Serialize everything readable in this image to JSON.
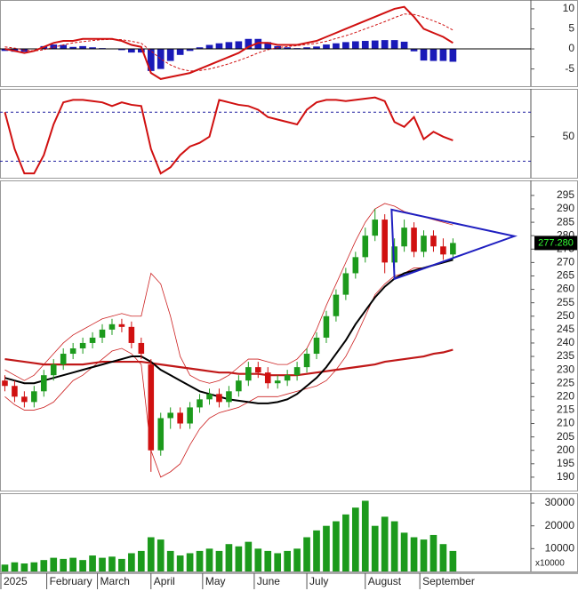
{
  "chart_data": [
    {
      "type": "macd",
      "xlim": [
        -0.5,
        54
      ],
      "ylim": [
        -9.3,
        12.2
      ],
      "yticks": [
        -5,
        0,
        5,
        10
      ],
      "macd": {
        "color": "#d01010",
        "values": [
          0,
          -0.5,
          -1,
          -0.5,
          0.5,
          1.5,
          2,
          2,
          2.5,
          2.5,
          2.5,
          2.5,
          2,
          1,
          0.5,
          -6,
          -7.5,
          -7,
          -6.5,
          -6,
          -5,
          -4,
          -3,
          -2,
          -1,
          0.5,
          1.5,
          1.5,
          1,
          1,
          1,
          1.5,
          2,
          3,
          4,
          5,
          6,
          7,
          8,
          9,
          10,
          10.5,
          8,
          5,
          4,
          3,
          1.5
        ]
      },
      "signal": {
        "color": "#d01010",
        "values": [
          0.5,
          0.2,
          -0.3,
          -0.5,
          -0.2,
          0.4,
          1,
          1.5,
          1.8,
          2.1,
          2.3,
          2.4,
          2.3,
          1.9,
          1.4,
          -0.5,
          -2.5,
          -4,
          -5,
          -5.5,
          -5.4,
          -5,
          -4.4,
          -3.7,
          -2.9,
          -2,
          -1,
          -0.2,
          0.3,
          0.6,
          0.8,
          1.1,
          1.4,
          1.9,
          2.6,
          3.3,
          4.1,
          5,
          5.9,
          6.8,
          7.8,
          8.7,
          8.6,
          7.9,
          7,
          6,
          4.7
        ]
      },
      "histogram": {
        "color": "#1a1ab8",
        "values": [
          -0.5,
          -0.7,
          -0.7,
          0,
          0.7,
          1.1,
          1,
          0.5,
          0.7,
          0.4,
          0.2,
          0.1,
          -0.3,
          -0.9,
          -0.9,
          -5.5,
          -5,
          -3,
          -1.5,
          -0.5,
          0.4,
          1,
          1.4,
          1.7,
          1.9,
          2.5,
          2.5,
          1.7,
          0.7,
          0.4,
          0.2,
          0.4,
          0.6,
          1.1,
          1.4,
          1.7,
          1.9,
          2,
          2.1,
          2.2,
          2.2,
          1.8,
          -0.6,
          -2.9,
          -3,
          -3,
          -3.2
        ]
      }
    },
    {
      "type": "line",
      "xlim": [
        -0.5,
        54
      ],
      "ylim": [
        16.5,
        89
      ],
      "yticks": [
        50
      ],
      "levels": [
        30,
        70
      ],
      "color": "#d01010",
      "values": [
        70,
        40,
        20,
        20,
        35,
        60,
        78,
        80,
        80,
        79,
        78,
        75,
        78,
        76,
        75,
        40,
        20,
        25,
        35,
        42,
        45,
        50,
        80,
        78,
        76,
        75,
        72,
        66,
        64,
        62,
        60,
        72,
        78,
        80,
        80,
        79,
        80,
        81,
        82,
        79,
        62,
        58,
        66,
        48,
        54,
        50,
        47
      ]
    },
    {
      "type": "candlestick",
      "xlim": [
        -0.5,
        54
      ],
      "ylim": [
        185,
        300.6
      ],
      "yticks": [
        190,
        195,
        200,
        205,
        210,
        215,
        220,
        225,
        230,
        235,
        240,
        245,
        250,
        255,
        260,
        265,
        270,
        275,
        280,
        285,
        290,
        295
      ],
      "up_color": "#1c9a1c",
      "down_color": "#d01010",
      "open": [
        226,
        224,
        220,
        218,
        222,
        228,
        232,
        236,
        238,
        240,
        242,
        245,
        247,
        246,
        240,
        232,
        200,
        212,
        214,
        210,
        216,
        219,
        221,
        218,
        222,
        226,
        231,
        229,
        225,
        226,
        228,
        231,
        236,
        242,
        250,
        258,
        266,
        272,
        280,
        286,
        270,
        276,
        283,
        274,
        280,
        276,
        273
      ],
      "high": [
        228,
        226,
        222,
        224,
        230,
        234,
        238,
        240,
        242,
        244,
        247,
        249,
        249,
        248,
        242,
        234,
        214,
        216,
        216,
        218,
        221,
        223,
        223,
        224,
        228,
        233,
        233,
        231,
        228,
        230,
        233,
        238,
        244,
        252,
        260,
        268,
        274,
        283,
        290,
        288,
        279,
        286,
        285,
        282,
        282,
        279,
        279
      ],
      "low": [
        222,
        218,
        216,
        216,
        220,
        226,
        230,
        234,
        236,
        238,
        240,
        243,
        244,
        238,
        234,
        192,
        198,
        208,
        208,
        208,
        214,
        217,
        216,
        216,
        220,
        224,
        227,
        223,
        223,
        224,
        226,
        229,
        234,
        240,
        248,
        256,
        264,
        270,
        278,
        266,
        268,
        274,
        272,
        272,
        274,
        271,
        271
      ],
      "close": [
        224,
        220,
        218,
        222,
        228,
        232,
        236,
        238,
        240,
        242,
        245,
        247,
        246,
        240,
        236,
        200,
        212,
        214,
        210,
        216,
        219,
        221,
        218,
        222,
        226,
        231,
        229,
        225,
        226,
        228,
        231,
        236,
        242,
        250,
        258,
        266,
        272,
        280,
        286,
        270,
        276,
        283,
        274,
        280,
        276,
        273,
        277.28
      ],
      "overlays": [
        {
          "color": "#cc2020",
          "width": 0.8,
          "values": [
            230,
            228,
            226,
            228,
            232,
            236,
            240,
            243,
            245,
            247,
            249,
            250,
            251,
            250,
            250,
            266,
            262,
            250,
            235,
            228,
            226,
            225,
            226,
            228,
            231,
            234,
            234,
            233,
            232,
            232,
            234,
            238,
            245,
            254,
            262,
            270,
            278,
            285,
            290,
            292,
            291,
            289,
            288,
            287,
            286,
            285,
            284
          ]
        },
        {
          "color": "#cc2020",
          "width": 0.8,
          "values": [
            220,
            217,
            215,
            215,
            216,
            218,
            222,
            226,
            228,
            231,
            234,
            237,
            238,
            236,
            232,
            200,
            190,
            192,
            195,
            202,
            208,
            212,
            214,
            215,
            216,
            218,
            220,
            220,
            220,
            221,
            222,
            223,
            224,
            226,
            230,
            235,
            242,
            250,
            258,
            262,
            265,
            266,
            268,
            268,
            269,
            270,
            271
          ]
        },
        {
          "color": "#c01818",
          "width": 2.2,
          "values": [
            234,
            233.5,
            233,
            232.5,
            232,
            232,
            232,
            232,
            232,
            232.5,
            233,
            233,
            233,
            233,
            233,
            232.5,
            232,
            231.5,
            231,
            230.5,
            230,
            229.5,
            229,
            229,
            228.5,
            228.5,
            228.5,
            228,
            228,
            228,
            228,
            228.5,
            229,
            229.5,
            230,
            230.5,
            231,
            231.5,
            232,
            233,
            233.5,
            234,
            234.5,
            235,
            236,
            236.5,
            237.5
          ]
        },
        {
          "color": "#000000",
          "width": 2,
          "values": [
            227,
            226,
            225,
            225,
            226,
            227,
            228,
            229,
            230,
            231,
            232,
            233,
            234,
            235,
            235,
            233,
            230,
            228,
            226,
            224,
            222,
            221,
            220,
            219,
            218.5,
            218,
            217.5,
            217.5,
            218,
            219,
            221,
            224,
            227,
            231,
            236,
            241,
            247,
            252,
            257,
            261,
            264,
            266,
            267,
            268,
            269,
            270,
            271
          ]
        }
      ],
      "triangle": {
        "color": "#1f1fc0",
        "x": [
          39.7,
          40,
          52.3
        ],
        "y": [
          289.7,
          263.9,
          279.8
        ]
      },
      "last_price": {
        "value": 277.28,
        "label": "277.280"
      }
    },
    {
      "type": "bar",
      "xlim": [
        -0.5,
        54
      ],
      "ylim": [
        0,
        34300
      ],
      "yticks": [
        10000,
        20000,
        30000
      ],
      "color": "#1c9a1c",
      "unit_label": "x10000",
      "values": [
        3000,
        4000,
        3500,
        4000,
        5000,
        6000,
        5500,
        6000,
        5000,
        7000,
        6000,
        6500,
        5500,
        8000,
        9000,
        15000,
        14000,
        9000,
        7000,
        8000,
        9000,
        10000,
        9000,
        12000,
        11000,
        13000,
        10000,
        9000,
        8000,
        9000,
        10000,
        15000,
        18000,
        20000,
        22000,
        25000,
        28000,
        31000,
        20000,
        24000,
        22000,
        17000,
        15000,
        14000,
        16000,
        12000,
        9000
      ],
      "xticks": [
        {
          "value": -0.5,
          "label": "2025"
        },
        {
          "value": 4.3,
          "label": "February"
        },
        {
          "value": 9.5,
          "label": "March"
        },
        {
          "value": 15,
          "label": "April"
        },
        {
          "value": 20.3,
          "label": "May"
        },
        {
          "value": 25.6,
          "label": "June"
        },
        {
          "value": 31,
          "label": "July"
        },
        {
          "value": 37,
          "label": "August"
        },
        {
          "value": 42.6,
          "label": "September"
        }
      ]
    }
  ]
}
